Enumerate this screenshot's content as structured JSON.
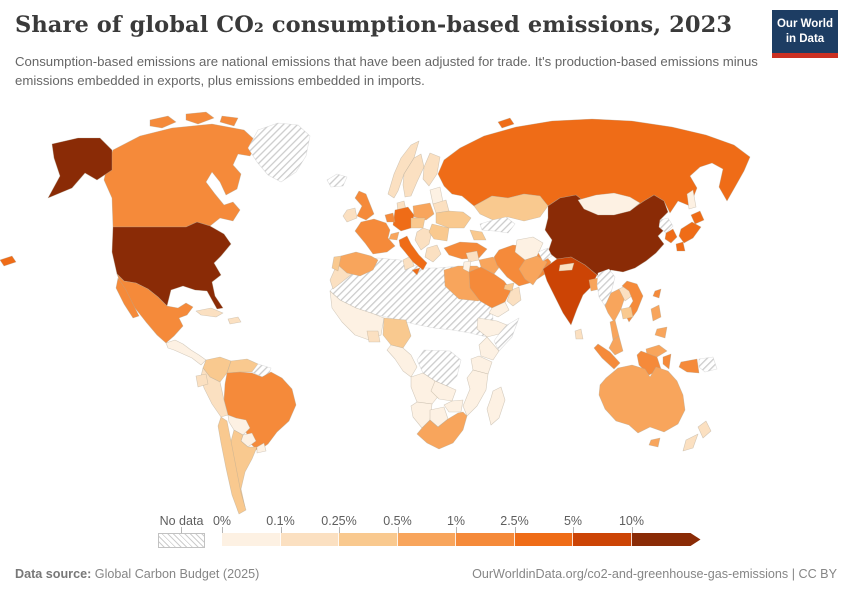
{
  "header": {
    "title": "Share of global CO₂ consumption-based emissions, 2023",
    "subtitle": "Consumption-based emissions are national emissions that have been adjusted for trade. It's production-based emissions minus emissions embedded in exports, plus emissions embedded in imports.",
    "logo": {
      "line1": "Our World",
      "line2": "in Data",
      "bg_color": "#1d3d63",
      "bar_color": "#cb3022"
    }
  },
  "footer": {
    "source_label": "Data source:",
    "source_value": " Global Carbon Budget (2025)",
    "rights": "OurWorldinData.org/co2-and-greenhouse-gas-emissions | CC BY"
  },
  "chart_data": {
    "type": "choropleth_map",
    "title": "Share of global CO₂ consumption-based emissions, 2023",
    "year": 2023,
    "unit": "% of global CO₂ consumption-based emissions",
    "legend": {
      "no_data_label": "No data",
      "tick_labels": [
        "0%",
        "0.1%",
        "0.25%",
        "0.5%",
        "1%",
        "2.5%",
        "5%",
        "10%"
      ],
      "bin_ranges": [
        "0–0.1%",
        "0.1–0.25%",
        "0.25–0.5%",
        "0.5–1%",
        "1–2.5%",
        "2.5–5%",
        "5–10%",
        "10%+"
      ],
      "bin_colors": [
        "#FDF1E3",
        "#FBE0C1",
        "#F9C98F",
        "#F8A55C",
        "#F58A3A",
        "#EF6C17",
        "#CC4405",
        "#8A2B06"
      ],
      "no_data_pattern": "diagonal-hatch"
    },
    "countries": {
      "united-states": 8,
      "china": 8,
      "india": 7,
      "russia": 6,
      "japan": 6,
      "south-korea": 6,
      "germany": 6,
      "italy": 6,
      "canada": 5,
      "mexico": 5,
      "brazil": 5,
      "united-kingdom": 5,
      "france": 5,
      "netherlands-belgium": 5,
      "turkey": 5,
      "saudi-arabia": 5,
      "iran": 5,
      "vietnam": 5,
      "indonesia": 5,
      "taiwan": 5,
      "spain": 4,
      "poland": 4,
      "switzerland": 4,
      "egypt": 4,
      "south-africa": 4,
      "iraq": 4,
      "pakistan": 4,
      "bangladesh": 4,
      "thailand": 4,
      "malaysia": 4,
      "philippines": 4,
      "australia": 4,
      "kazakhstan": 3,
      "ukraine": 3,
      "romania-bulgaria": 3,
      "portugal": 3,
      "austria-czechia": 3,
      "nigeria": 3,
      "colombia": 3,
      "venezuela": 3,
      "argentina": 3,
      "chile": 3,
      "cambodia": 3,
      "caucasus": 3,
      "uae-qatar": 3,
      "ireland": 2,
      "norway": 2,
      "sweden": 2,
      "finland": 2,
      "denmark": 2,
      "belarus": 2,
      "greece": 2,
      "balkans": 2,
      "morocco": 2,
      "tunisia": 2,
      "ghana": 2,
      "cuba": 2,
      "hispaniola": 2,
      "peru": 2,
      "ecuador": 2,
      "new-zealand": 2,
      "oman": 2,
      "syria": 2,
      "nepal": 2,
      "laos": 2,
      "sri-lanka": 2,
      "mongolia": 1,
      "bolivia": 1,
      "paraguay": 1,
      "uruguay": 1,
      "afghanistan": 1,
      "ethiopia": 1,
      "kenya": 1,
      "tanzania": 1,
      "angola": 1,
      "zambia": 1,
      "mozambique": 1,
      "zimbabwe": 1,
      "namibia": 1,
      "botswana": 1,
      "madagascar": 1,
      "west-africa": 1,
      "cameroon-gabon": 1,
      "central-america": 1,
      "yemen": 1,
      "baltic-states": 1,
      "jordan-israel": 1,
      "greenland": 0,
      "iceland": 0,
      "guyanas": 0,
      "sahara-region": 0,
      "somalia": 0,
      "dr-congo": 0,
      "central-asia": 0,
      "kashmir": 0,
      "myanmar": 0,
      "north-korea": 0,
      "papua-new-guinea": 0
    }
  }
}
